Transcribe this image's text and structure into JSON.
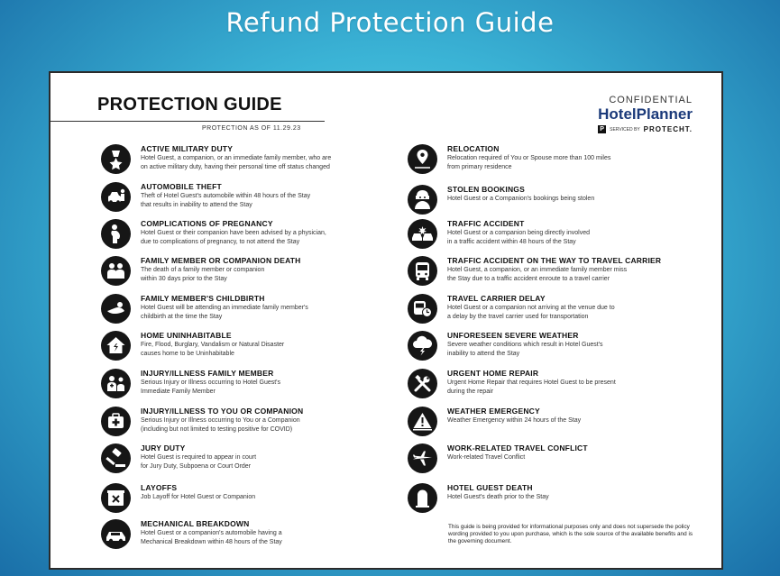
{
  "slide_title": "Refund Protection Guide",
  "doc": {
    "title": "PROTECTION GUIDE",
    "as_of": "PROTECTION AS OF 11.29.23",
    "confidential": "CONFIDENTIAL",
    "brand_hotel": "Hotel",
    "brand_planner": "Planner",
    "serviced_by": "SERVICED BY",
    "protecht": "PROTECHT.",
    "p_mark": "P"
  },
  "left_items": [
    {
      "icon": "medal-icon",
      "title": "ACTIVE MILITARY DUTY",
      "desc": "Hotel Guest, a companion, or an immediate family member, who are\non active military duty, having their personal time off status changed"
    },
    {
      "icon": "car-theft-icon",
      "title": "AUTOMOBILE THEFT",
      "desc": "Theft of Hotel Guest's automobile within 48 hours of the Stay\nthat results in inability to attend the Stay"
    },
    {
      "icon": "pregnancy-icon",
      "title": "COMPLICATIONS OF PREGNANCY",
      "desc": "Hotel Guest or their companion have been advised by a physician,\ndue to complications of pregnancy, to not attend the Stay"
    },
    {
      "icon": "family-icon",
      "title": "FAMILY MEMBER OR COMPANION DEATH",
      "desc": "The death of a family member or companion\nwithin 30 days prior to the Stay"
    },
    {
      "icon": "baby-icon",
      "title": "FAMILY MEMBER'S CHILDBIRTH",
      "desc": "Hotel Guest will be attending an immediate family member's\nchildbirth at the time the Stay"
    },
    {
      "icon": "broken-house-icon",
      "title": "HOME UNINHABITABLE",
      "desc": "Fire, Flood, Burglary, Vandalism or Natural Disaster\ncauses home to be Uninhabitable"
    },
    {
      "icon": "injury-family-icon",
      "title": "INJURY/ILLNESS FAMILY MEMBER",
      "desc": "Serious Injury or Illness occurring to Hotel Guest's\nImmediate Family Member"
    },
    {
      "icon": "medical-kit-icon",
      "title": "INJURY/ILLNESS TO YOU OR COMPANION",
      "desc": "Serious Injury or Illness occurring to You or a Companion\n(including but not limited to testing positive for COVID)"
    },
    {
      "icon": "gavel-icon",
      "title": "JURY DUTY",
      "desc": "Hotel Guest is required to appear in court\nfor Jury Duty, Subpoena or Court Order"
    },
    {
      "icon": "box-x-icon",
      "title": "LAYOFFS",
      "desc": "Job Layoff for Hotel Guest or Companion"
    },
    {
      "icon": "car-icon",
      "title": "MECHANICAL BREAKDOWN",
      "desc": "Hotel Guest or a companion's automobile having a\nMechanical Breakdown within 48 hours of the Stay"
    }
  ],
  "right_items": [
    {
      "icon": "map-pin-icon",
      "title": "RELOCATION",
      "desc": "Relocation required of You or Spouse more than 100 miles\nfrom primary residence"
    },
    {
      "icon": "thief-icon",
      "title": "STOLEN BOOKINGS",
      "desc": "Hotel Guest or a Companion's bookings being stolen"
    },
    {
      "icon": "crash-icon",
      "title": "TRAFFIC ACCIDENT",
      "desc": "Hotel Guest or a companion being directly involved\nin a traffic accident within 48 hours of the Stay"
    },
    {
      "icon": "bus-icon",
      "title": "TRAFFIC ACCIDENT ON THE WAY TO TRAVEL CARRIER",
      "desc": "Hotel Guest, a companion, or an immediate family member miss\nthe Stay due to a traffic accident enroute to a travel carrier"
    },
    {
      "icon": "bus-clock-icon",
      "title": "TRAVEL CARRIER DELAY",
      "desc": "Hotel Guest or a companion not arriving at the venue due to\na delay by the travel carrier used for transportation"
    },
    {
      "icon": "storm-icon",
      "title": "UNFORESEEN SEVERE WEATHER",
      "desc": "Severe weather conditions which result in Hotel Guest's\ninability to attend the Stay"
    },
    {
      "icon": "tools-icon",
      "title": "URGENT HOME REPAIR",
      "desc": "Urgent Home Repair that requires Hotel Guest to be present\nduring the repair"
    },
    {
      "icon": "warning-icon",
      "title": "WEATHER EMERGENCY",
      "desc": "Weather Emergency within 24 hours of the Stay"
    },
    {
      "icon": "airplane-icon",
      "title": "WORK-RELATED TRAVEL CONFLICT",
      "desc": "Work-related Travel Conflict"
    },
    {
      "icon": "tombstone-icon",
      "title": "HOTEL GUEST DEATH",
      "desc": "Hotel Guest's death prior to the Stay"
    }
  ],
  "disclaimer": "This guide is being provided for informational purposes only and does not supersede the policy wording provided to you upon purchase, which is the sole source of the available benefits and is the governing document."
}
